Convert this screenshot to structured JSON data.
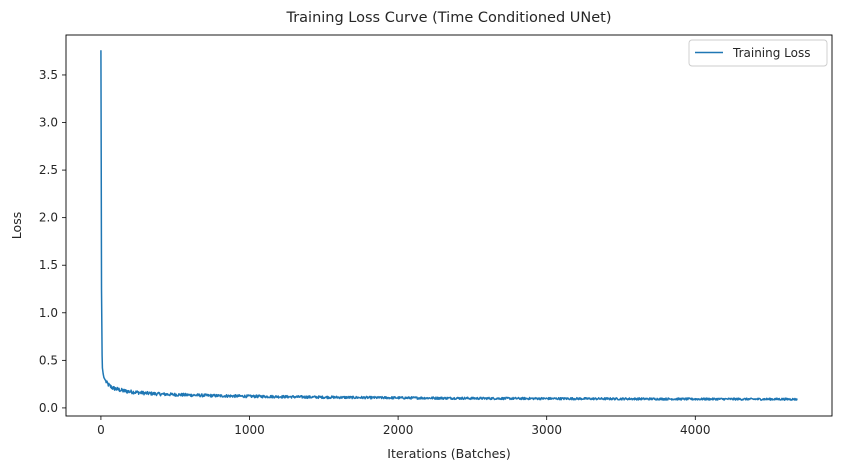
{
  "chart_data": {
    "type": "line",
    "title": "Training Loss Curve (Time Conditioned UNet)",
    "xlabel": "Iterations (Batches)",
    "ylabel": "Loss",
    "xlim": [
      -235,
      4920
    ],
    "ylim": [
      -0.085,
      3.92
    ],
    "xticks": [
      0,
      1000,
      2000,
      3000,
      4000
    ],
    "xtick_labels": [
      "0",
      "1000",
      "2000",
      "3000",
      "4000"
    ],
    "yticks": [
      0.0,
      0.5,
      1.0,
      1.5,
      2.0,
      2.5,
      3.0,
      3.5
    ],
    "ytick_labels": [
      "0.0",
      "0.5",
      "1.0",
      "1.5",
      "2.0",
      "2.5",
      "3.0",
      "3.5"
    ],
    "grid": false,
    "legend_position": "top-right",
    "series": [
      {
        "name": "Training Loss",
        "color": "#1f77b4",
        "x": [
          0,
          2,
          4,
          6,
          8,
          10,
          15,
          20,
          30,
          40,
          60,
          80,
          100,
          150,
          200,
          300,
          400,
          500,
          600,
          800,
          1000,
          1200,
          1400,
          1600,
          1800,
          2000,
          2200,
          2400,
          2600,
          2800,
          3000,
          3200,
          3400,
          3600,
          3800,
          4000,
          4200,
          4400,
          4600,
          4686
        ],
        "y": [
          3.76,
          2.6,
          1.25,
          0.9,
          0.55,
          0.42,
          0.36,
          0.32,
          0.29,
          0.26,
          0.23,
          0.21,
          0.2,
          0.18,
          0.17,
          0.155,
          0.145,
          0.14,
          0.135,
          0.127,
          0.122,
          0.118,
          0.114,
          0.111,
          0.108,
          0.106,
          0.104,
          0.102,
          0.1,
          0.099,
          0.098,
          0.097,
          0.096,
          0.095,
          0.094,
          0.093,
          0.093,
          0.092,
          0.092,
          0.091
        ]
      }
    ]
  }
}
